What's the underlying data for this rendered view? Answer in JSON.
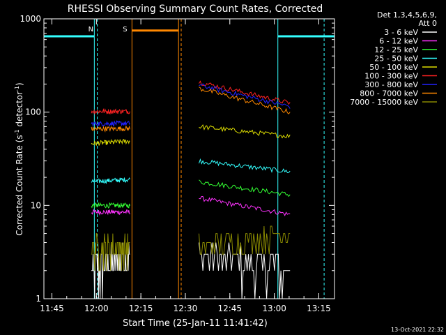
{
  "chart_data": {
    "type": "line",
    "title": "RHESSI Observing Summary Count Rates, Corrected",
    "xlabel": "Start Time (25-Jan-11 11:41:42)",
    "ylabel_main": "Corrected Count Rate (s",
    "ylabel_sup1": "-1",
    "ylabel_mid": " detector",
    "ylabel_sup2": "-1",
    "ylabel_end": ")",
    "yscale": "log",
    "ylim": [
      1,
      1000
    ],
    "xlim_minutes": [
      -17.7,
      80.3
    ],
    "x_ticks": [
      "11:45",
      "12:00",
      "12:15",
      "12:30",
      "12:45",
      "13:00",
      "13:15"
    ],
    "x_tick_minutes": [
      -15,
      0,
      15,
      30,
      45,
      60,
      75
    ],
    "y_ticks": [
      "1",
      "10",
      "100",
      "1000"
    ],
    "y_tick_values": [
      1,
      10,
      100,
      1000
    ],
    "legend_header": [
      "Det 1,3,4,5,6,9,",
      "Att 0"
    ],
    "series": [
      {
        "name": "3 - 6 keV",
        "color": "#ffffff",
        "seg1": [
          2,
          3
        ],
        "seg2": [
          3,
          2
        ]
      },
      {
        "name": "6 - 12 keV",
        "color": "#ff33ff",
        "seg1": [
          8.5,
          8.5
        ],
        "seg2": [
          12,
          8
        ]
      },
      {
        "name": "12 - 25 keV",
        "color": "#33ff33",
        "seg1": [
          10,
          10
        ],
        "seg2": [
          18,
          13
        ]
      },
      {
        "name": "25 - 50 keV",
        "color": "#33ffff",
        "seg1": [
          18,
          19
        ],
        "seg2": [
          30,
          23
        ]
      },
      {
        "name": "50 - 100 keV",
        "color": "#dddd00",
        "seg1": [
          46,
          49
        ],
        "seg2": [
          70,
          55
        ]
      },
      {
        "name": "100 - 300 keV",
        "color": "#ff2222",
        "seg1": [
          102,
          102
        ],
        "seg2": [
          210,
          125
        ]
      },
      {
        "name": "300 - 800 keV",
        "color": "#2222ff",
        "seg1": [
          75,
          76
        ],
        "seg2": [
          195,
          115
        ]
      },
      {
        "name": "800 - 7000 keV",
        "color": "#ff8800",
        "seg1": [
          66,
          67
        ],
        "seg2": [
          180,
          100
        ]
      },
      {
        "name": "7000 - 15000 keV",
        "color": "#888800",
        "seg1": [
          3.5,
          3.5
        ],
        "seg2": [
          3.5,
          5
        ]
      }
    ],
    "seg1_minutes": [
      -1.7,
      11.3
    ],
    "seg2_minutes": [
      34.6,
      65.3
    ],
    "annotations": {
      "night": {
        "label": "N",
        "color": "#33ffff",
        "level": 650,
        "ranges": [
          [
            -17.7,
            -0.7
          ],
          [
            61.2,
            80.3
          ]
        ],
        "dashed_minutes": [
          0.3,
          76.8
        ]
      },
      "saa": {
        "label": "S",
        "color": "#ff8800",
        "level": 750,
        "ranges": [
          [
            12.0,
            27.7
          ]
        ],
        "dashed_minutes": [
          28.6
        ]
      }
    },
    "grid": false
  },
  "footer": {
    "date": "13-Oct-2021 22:32"
  }
}
